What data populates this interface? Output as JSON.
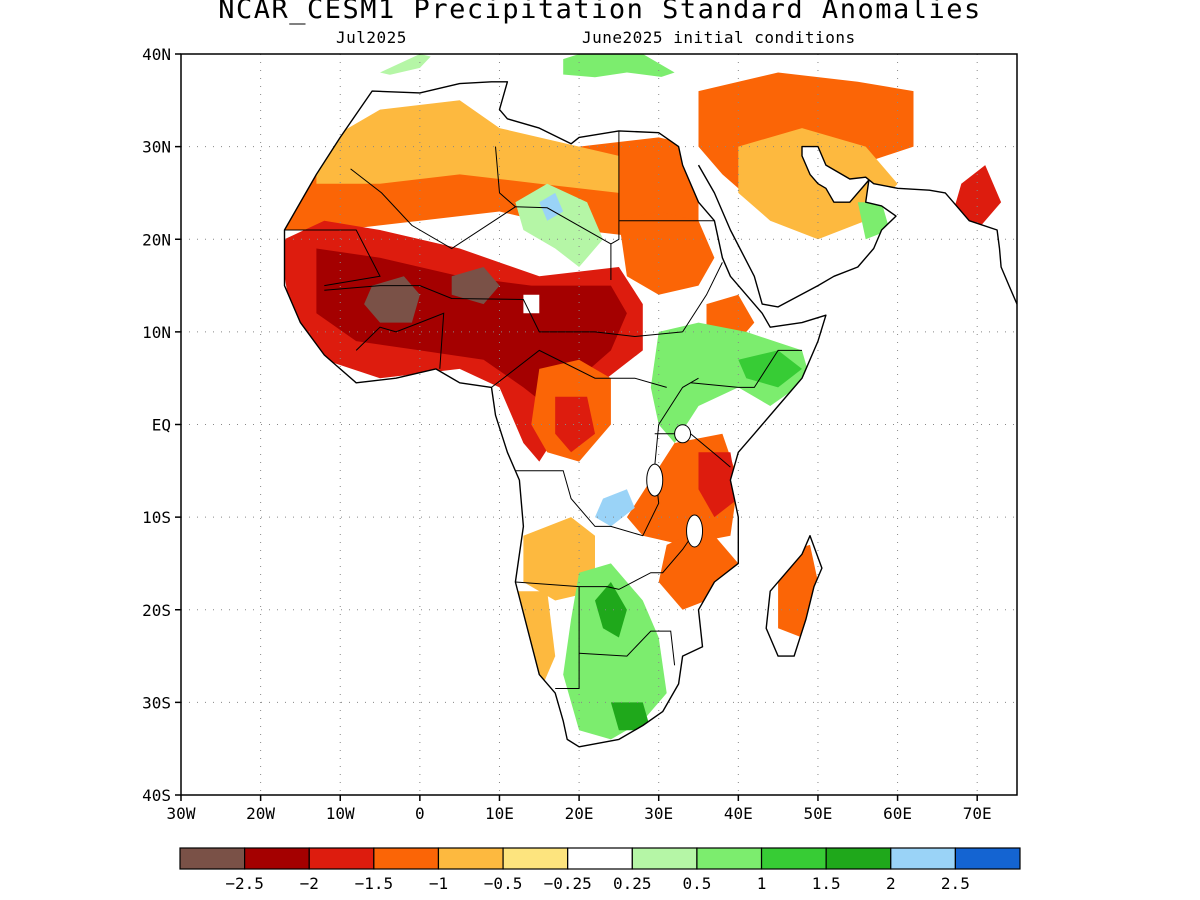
{
  "title": "NCAR_CESM1 Precipitation Standard Anomalies",
  "subtitle_left": "Jul2025",
  "subtitle_right": "June2025 initial conditions",
  "map": {
    "lon_range": [
      -30,
      75
    ],
    "lat_range": [
      -40,
      40
    ],
    "lat_ticks": [
      {
        "value": 40,
        "label": "40N"
      },
      {
        "value": 30,
        "label": "30N"
      },
      {
        "value": 20,
        "label": "20N"
      },
      {
        "value": 10,
        "label": "10N"
      },
      {
        "value": 0,
        "label": "EQ"
      },
      {
        "value": -10,
        "label": "10S"
      },
      {
        "value": -20,
        "label": "20S"
      },
      {
        "value": -30,
        "label": "30S"
      },
      {
        "value": -40,
        "label": "40S"
      }
    ],
    "lon_ticks": [
      {
        "value": -30,
        "label": "30W"
      },
      {
        "value": -20,
        "label": "20W"
      },
      {
        "value": -10,
        "label": "10W"
      },
      {
        "value": 0,
        "label": "0"
      },
      {
        "value": 10,
        "label": "10E"
      },
      {
        "value": 20,
        "label": "20E"
      },
      {
        "value": 30,
        "label": "30E"
      },
      {
        "value": 40,
        "label": "40E"
      },
      {
        "value": 50,
        "label": "50E"
      },
      {
        "value": 60,
        "label": "60E"
      },
      {
        "value": 70,
        "label": "70E"
      }
    ],
    "grid": "dotted"
  },
  "colorbar": {
    "colors": [
      "#7a5147",
      "#a40000",
      "#dd1c0e",
      "#fb6506",
      "#fdb93f",
      "#fde47e",
      "#ffffff",
      "#b5f6a6",
      "#7ced6e",
      "#37cc35",
      "#1fa81b",
      "#9ad3f7",
      "#1464d2"
    ],
    "labels": [
      "-2.5",
      "-2",
      "-1.5",
      "-1",
      "-0.5",
      "-0.25",
      "0.25",
      "0.5",
      "1",
      "1.5",
      "2",
      "2.5"
    ]
  },
  "anomaly_regions": [
    {
      "class": 3,
      "label": "North Africa moderate dry",
      "poly": [
        [
          -17,
          27
        ],
        [
          -8,
          31
        ],
        [
          0,
          32
        ],
        [
          10,
          31
        ],
        [
          20,
          30
        ],
        [
          30,
          31
        ],
        [
          35,
          30
        ],
        [
          35,
          22
        ],
        [
          30,
          20
        ],
        [
          20,
          21
        ],
        [
          10,
          23
        ],
        [
          0,
          22
        ],
        [
          -10,
          21
        ],
        [
          -17,
          21
        ]
      ]
    },
    {
      "class": 4,
      "label": "Sahara light dry",
      "poly": [
        [
          -13,
          30
        ],
        [
          -5,
          34
        ],
        [
          5,
          35
        ],
        [
          10,
          32
        ],
        [
          20,
          30
        ],
        [
          25,
          29
        ],
        [
          25,
          25
        ],
        [
          15,
          26
        ],
        [
          5,
          27
        ],
        [
          -5,
          26
        ],
        [
          -13,
          26
        ]
      ]
    },
    {
      "class": 2,
      "label": "Sahel strong dry",
      "poly": [
        [
          -17,
          20
        ],
        [
          -12,
          22
        ],
        [
          -5,
          21
        ],
        [
          5,
          19
        ],
        [
          15,
          16
        ],
        [
          25,
          17
        ],
        [
          28,
          13
        ],
        [
          28,
          8
        ],
        [
          22,
          4
        ],
        [
          18,
          0
        ],
        [
          15,
          -4
        ],
        [
          13,
          -2
        ],
        [
          10,
          4
        ],
        [
          5,
          6
        ],
        [
          -5,
          5
        ],
        [
          -12,
          7
        ],
        [
          -16,
          11
        ],
        [
          -17,
          16
        ]
      ]
    },
    {
      "class": 1,
      "label": "Central Sahel very strong dry",
      "poly": [
        [
          -13,
          19
        ],
        [
          -5,
          18
        ],
        [
          5,
          16
        ],
        [
          14,
          15
        ],
        [
          24,
          15
        ],
        [
          26,
          12
        ],
        [
          24,
          8
        ],
        [
          20,
          5
        ],
        [
          16,
          2
        ],
        [
          13,
          4
        ],
        [
          8,
          7
        ],
        [
          0,
          8
        ],
        [
          -8,
          9
        ],
        [
          -13,
          12
        ],
        [
          -13,
          16
        ]
      ]
    },
    {
      "class": 0,
      "label": "Sahel extreme dry west",
      "poly": [
        [
          -6,
          15
        ],
        [
          -2,
          16
        ],
        [
          0,
          14
        ],
        [
          -1,
          11
        ],
        [
          -5,
          11
        ],
        [
          -7,
          13
        ]
      ]
    },
    {
      "class": 0,
      "label": "Sahel extreme dry central",
      "poly": [
        [
          4,
          16
        ],
        [
          8,
          17
        ],
        [
          10,
          15
        ],
        [
          8,
          13
        ],
        [
          4,
          14
        ]
      ]
    },
    {
      "class": 6,
      "label": "Lake Chad near normal",
      "poly": [
        [
          13,
          14
        ],
        [
          15,
          14
        ],
        [
          15,
          12
        ],
        [
          13,
          12
        ]
      ]
    },
    {
      "class": 7,
      "label": "Chad highlands wet",
      "poly": [
        [
          12,
          24
        ],
        [
          16,
          26
        ],
        [
          21,
          24
        ],
        [
          23,
          20
        ],
        [
          20,
          17
        ],
        [
          17,
          19
        ],
        [
          13,
          21
        ]
      ]
    },
    {
      "class": 11,
      "label": "Tibesti strong wet",
      "poly": [
        [
          15,
          24
        ],
        [
          17,
          25
        ],
        [
          18,
          23
        ],
        [
          16,
          22
        ]
      ]
    },
    {
      "class": 3,
      "label": "Sudan moderate dry",
      "poly": [
        [
          25,
          22
        ],
        [
          30,
          23
        ],
        [
          35,
          22
        ],
        [
          37,
          18
        ],
        [
          35,
          15
        ],
        [
          30,
          14
        ],
        [
          26,
          16
        ]
      ]
    },
    {
      "class": 3,
      "label": "Ethiopia dry pocket",
      "poly": [
        [
          36,
          13
        ],
        [
          40,
          14
        ],
        [
          42,
          11
        ],
        [
          39,
          8
        ],
        [
          36,
          9
        ]
      ]
    },
    {
      "class": 8,
      "label": "East Africa wet",
      "poly": [
        [
          30,
          10
        ],
        [
          35,
          11
        ],
        [
          41,
          10
        ],
        [
          48,
          8
        ],
        [
          49,
          5
        ],
        [
          44,
          2
        ],
        [
          40,
          4
        ],
        [
          35,
          2
        ],
        [
          32,
          -2
        ],
        [
          30,
          0
        ],
        [
          29,
          4
        ]
      ]
    },
    {
      "class": 9,
      "label": "Somalia moderate wet",
      "poly": [
        [
          40,
          7
        ],
        [
          45,
          8
        ],
        [
          48,
          6
        ],
        [
          45,
          4
        ],
        [
          41,
          5
        ]
      ]
    },
    {
      "class": 3,
      "label": "Congo basin dry",
      "poly": [
        [
          15,
          6
        ],
        [
          20,
          7
        ],
        [
          24,
          5
        ],
        [
          24,
          0
        ],
        [
          20,
          -4
        ],
        [
          16,
          -3
        ],
        [
          14,
          0
        ]
      ]
    },
    {
      "class": 2,
      "label": "Congo basin strong dry",
      "poly": [
        [
          17,
          3
        ],
        [
          21,
          3
        ],
        [
          22,
          -1
        ],
        [
          19,
          -3
        ],
        [
          17,
          -1
        ]
      ]
    },
    {
      "class": 3,
      "label": "Tanzania dry",
      "poly": [
        [
          32,
          -2
        ],
        [
          38,
          -1
        ],
        [
          40,
          -6
        ],
        [
          39,
          -12
        ],
        [
          33,
          -13
        ],
        [
          28,
          -12
        ],
        [
          26,
          -10
        ]
      ]
    },
    {
      "class": 2,
      "label": "Tanzania strong dry",
      "poly": [
        [
          35,
          -3
        ],
        [
          39,
          -3
        ],
        [
          40,
          -8
        ],
        [
          37,
          -10
        ],
        [
          35,
          -7
        ]
      ]
    },
    {
      "class": 11,
      "label": "Lake Tanganyika wet",
      "poly": [
        [
          22,
          -10
        ],
        [
          24,
          -11
        ],
        [
          27,
          -9
        ],
        [
          26,
          -7
        ],
        [
          23,
          -8
        ]
      ]
    },
    {
      "class": 4,
      "label": "Angola light dry",
      "poly": [
        [
          13,
          -12
        ],
        [
          19,
          -10
        ],
        [
          22,
          -12
        ],
        [
          22,
          -18
        ],
        [
          17,
          -19
        ],
        [
          13,
          -17
        ]
      ]
    },
    {
      "class": 3,
      "label": "Mozambique dry",
      "poly": [
        [
          31,
          -13
        ],
        [
          36,
          -11
        ],
        [
          40,
          -15
        ],
        [
          36,
          -19
        ],
        [
          33,
          -20
        ],
        [
          30,
          -17
        ]
      ]
    },
    {
      "class": 8,
      "label": "Southern Africa wet",
      "poly": [
        [
          20,
          -16
        ],
        [
          24,
          -15
        ],
        [
          28,
          -19
        ],
        [
          30,
          -23
        ],
        [
          31,
          -29
        ],
        [
          28,
          -32
        ],
        [
          24,
          -34
        ],
        [
          20,
          -33
        ],
        [
          18,
          -27
        ],
        [
          19,
          -21
        ]
      ]
    },
    {
      "class": 10,
      "label": "Southern Africa strong wet",
      "poly": [
        [
          22,
          -19
        ],
        [
          24,
          -17
        ],
        [
          26,
          -20
        ],
        [
          25,
          -23
        ],
        [
          23,
          -22
        ]
      ]
    },
    {
      "class": 10,
      "label": "South Africa strong wet",
      "poly": [
        [
          24,
          -30
        ],
        [
          28,
          -30
        ],
        [
          29,
          -33
        ],
        [
          25,
          -33
        ]
      ]
    },
    {
      "class": 4,
      "label": "Namibia light dry",
      "poly": [
        [
          12,
          -18
        ],
        [
          16,
          -18
        ],
        [
          17,
          -25
        ],
        [
          15,
          -29
        ],
        [
          12,
          -24
        ]
      ]
    },
    {
      "class": 3,
      "label": "Madagascar dry",
      "poly": [
        [
          45,
          -14
        ],
        [
          49,
          -13
        ],
        [
          50,
          -17
        ],
        [
          48,
          -23
        ],
        [
          45,
          -22
        ]
      ]
    },
    {
      "class": 3,
      "label": "Arabia moderate dry",
      "poly": [
        [
          35,
          36
        ],
        [
          45,
          38
        ],
        [
          55,
          37
        ],
        [
          62,
          36
        ],
        [
          62,
          30
        ],
        [
          55,
          28
        ],
        [
          48,
          26
        ],
        [
          42,
          24
        ],
        [
          38,
          27
        ],
        [
          35,
          30
        ]
      ]
    },
    {
      "class": 4,
      "label": "Arabia light dry",
      "poly": [
        [
          40,
          30
        ],
        [
          48,
          32
        ],
        [
          56,
          30
        ],
        [
          60,
          26
        ],
        [
          56,
          22
        ],
        [
          50,
          20
        ],
        [
          44,
          22
        ],
        [
          40,
          25
        ]
      ]
    },
    {
      "class": 8,
      "label": "Oman wet",
      "poly": [
        [
          55,
          24
        ],
        [
          58,
          24
        ],
        [
          59,
          21
        ],
        [
          56,
          20
        ]
      ]
    },
    {
      "class": 2,
      "label": "Pakistan strong dry",
      "poly": [
        [
          68,
          26
        ],
        [
          71,
          28
        ],
        [
          73,
          24
        ],
        [
          70,
          21
        ],
        [
          67,
          23
        ]
      ]
    },
    {
      "class": 7,
      "label": "Mediterranean wet",
      "poly": [
        [
          -5,
          38
        ],
        [
          0,
          40
        ],
        [
          5,
          39
        ],
        [
          0,
          37
        ]
      ]
    },
    {
      "class": 8,
      "label": "Levant wet",
      "poly": [
        [
          18,
          40
        ],
        [
          28,
          40
        ],
        [
          32,
          38
        ],
        [
          25,
          36
        ],
        [
          18,
          37
        ]
      ]
    }
  ],
  "coastline": [
    [
      -6,
      36
    ],
    [
      -10,
      31
    ],
    [
      -13,
      27
    ],
    [
      -17,
      21
    ],
    [
      -17,
      15
    ],
    [
      -15,
      11
    ],
    [
      -12,
      7.5
    ],
    [
      -8,
      4.5
    ],
    [
      -3,
      5
    ],
    [
      2,
      6
    ],
    [
      5,
      4.5
    ],
    [
      9,
      4
    ],
    [
      9.5,
      1
    ],
    [
      11,
      -3
    ],
    [
      12.5,
      -6
    ],
    [
      13,
      -11
    ],
    [
      12,
      -17
    ],
    [
      15,
      -27
    ],
    [
      17,
      -29
    ],
    [
      18,
      -32
    ],
    [
      18.5,
      -34
    ],
    [
      20,
      -34.8
    ],
    [
      25,
      -34
    ],
    [
      28,
      -32.5
    ],
    [
      30.5,
      -31
    ],
    [
      32.5,
      -28
    ],
    [
      33,
      -25
    ],
    [
      35.5,
      -24
    ],
    [
      35,
      -20
    ],
    [
      37,
      -17
    ],
    [
      40,
      -15
    ],
    [
      40,
      -10
    ],
    [
      39,
      -6
    ],
    [
      40,
      -3
    ],
    [
      42,
      -1
    ],
    [
      45,
      2
    ],
    [
      48,
      5
    ],
    [
      50,
      9
    ],
    [
      51,
      11.8
    ],
    [
      48,
      11
    ],
    [
      44,
      10.5
    ],
    [
      43,
      12
    ],
    [
      39,
      16
    ],
    [
      38,
      18
    ],
    [
      37,
      22
    ],
    [
      35,
      24
    ],
    [
      33,
      28
    ],
    [
      32.5,
      30
    ],
    [
      30,
      31.5
    ],
    [
      25,
      31.7
    ],
    [
      20,
      31
    ],
    [
      19,
      30.3
    ],
    [
      15,
      32
    ],
    [
      11,
      33
    ],
    [
      10,
      34
    ],
    [
      11,
      37
    ],
    [
      9,
      37
    ],
    [
      5,
      36.8
    ],
    [
      0,
      35.8
    ],
    [
      -6,
      36
    ]
  ],
  "arabia": [
    [
      35,
      28
    ],
    [
      37,
      25
    ],
    [
      39,
      21
    ],
    [
      42,
      16
    ],
    [
      43,
      13
    ],
    [
      45,
      12.7
    ],
    [
      50,
      15
    ],
    [
      52,
      16
    ],
    [
      55,
      17
    ],
    [
      57,
      19
    ],
    [
      58,
      21
    ],
    [
      59.8,
      22.5
    ],
    [
      58,
      23.6
    ],
    [
      56,
      24
    ],
    [
      56.4,
      26.4
    ],
    [
      54,
      24
    ],
    [
      52,
      24
    ],
    [
      51,
      25.5
    ],
    [
      50,
      26
    ],
    [
      49,
      27
    ],
    [
      48,
      29
    ],
    [
      48,
      30
    ],
    [
      50,
      30
    ],
    [
      51,
      28
    ],
    [
      54,
      26.5
    ],
    [
      56,
      26.7
    ],
    [
      57,
      26
    ],
    [
      60,
      25.5
    ],
    [
      64,
      25.3
    ],
    [
      66,
      25
    ],
    [
      67,
      24
    ],
    [
      69,
      22
    ],
    [
      72.5,
      21
    ],
    [
      72.8,
      19
    ],
    [
      73,
      17
    ],
    [
      74,
      15
    ],
    [
      75,
      13
    ]
  ],
  "madagascar": [
    [
      49,
      -12
    ],
    [
      50.5,
      -15.5
    ],
    [
      49.5,
      -17.5
    ],
    [
      48.5,
      -21
    ],
    [
      47,
      -25
    ],
    [
      45,
      -25
    ],
    [
      43.5,
      -22
    ],
    [
      44,
      -18
    ],
    [
      46,
      -16
    ],
    [
      48,
      -14
    ]
  ]
}
